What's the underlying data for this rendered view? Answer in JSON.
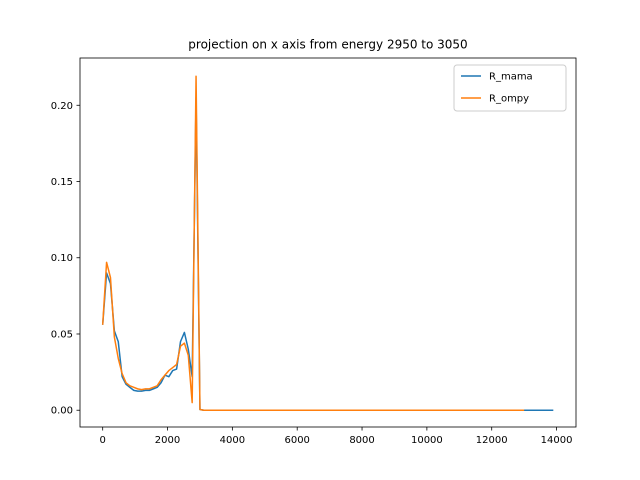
{
  "chart_data": {
    "type": "line",
    "title": "projection on x axis from energy 2950 to 3050",
    "xlabel": "",
    "ylabel": "",
    "xlim": [
      -700,
      14600
    ],
    "ylim": [
      -0.011,
      0.231
    ],
    "xticks": [
      0,
      2000,
      4000,
      6000,
      8000,
      10000,
      12000,
      14000
    ],
    "yticks": [
      0.0,
      0.05,
      0.1,
      0.15,
      0.2
    ],
    "xtick_labels": [
      "0",
      "2000",
      "4000",
      "6000",
      "8000",
      "10000",
      "12000",
      "14000"
    ],
    "ytick_labels": [
      "0.00",
      "0.05",
      "0.10",
      "0.15",
      "0.20"
    ],
    "grid": false,
    "legend_position": "upper right",
    "series": [
      {
        "name": "R_mama",
        "color": "#1f77b4",
        "x": [
          0,
          120,
          240,
          360,
          480,
          600,
          720,
          840,
          960,
          1080,
          1200,
          1320,
          1440,
          1560,
          1680,
          1800,
          1920,
          2040,
          2160,
          2280,
          2400,
          2520,
          2640,
          2760,
          2880,
          3000,
          3120,
          4000,
          6000,
          8000,
          10000,
          12000,
          13000,
          13900
        ],
        "y": [
          0.056,
          0.09,
          0.083,
          0.052,
          0.045,
          0.022,
          0.017,
          0.015,
          0.013,
          0.0125,
          0.0125,
          0.013,
          0.013,
          0.014,
          0.015,
          0.018,
          0.023,
          0.022,
          0.026,
          0.027,
          0.045,
          0.051,
          0.04,
          0.022,
          0.205,
          0.0005,
          0.0,
          0.0,
          0.0,
          0.0,
          0.0,
          0.0,
          0.0,
          0.0
        ]
      },
      {
        "name": "R_ompy",
        "color": "#ff7f0e",
        "x": [
          0,
          120,
          240,
          360,
          480,
          600,
          720,
          840,
          960,
          1080,
          1200,
          1320,
          1440,
          1560,
          1680,
          1800,
          1920,
          2040,
          2160,
          2280,
          2400,
          2520,
          2640,
          2760,
          2880,
          3000,
          3120,
          4000,
          6000,
          8000,
          10000,
          12000,
          13000
        ],
        "y": [
          0.056,
          0.097,
          0.087,
          0.048,
          0.034,
          0.024,
          0.018,
          0.016,
          0.015,
          0.014,
          0.0135,
          0.014,
          0.014,
          0.015,
          0.016,
          0.02,
          0.023,
          0.026,
          0.028,
          0.03,
          0.042,
          0.044,
          0.036,
          0.005,
          0.219,
          0.0005,
          0.0,
          0.0,
          0.0,
          0.0,
          0.0,
          0.0,
          0.0
        ]
      }
    ]
  }
}
